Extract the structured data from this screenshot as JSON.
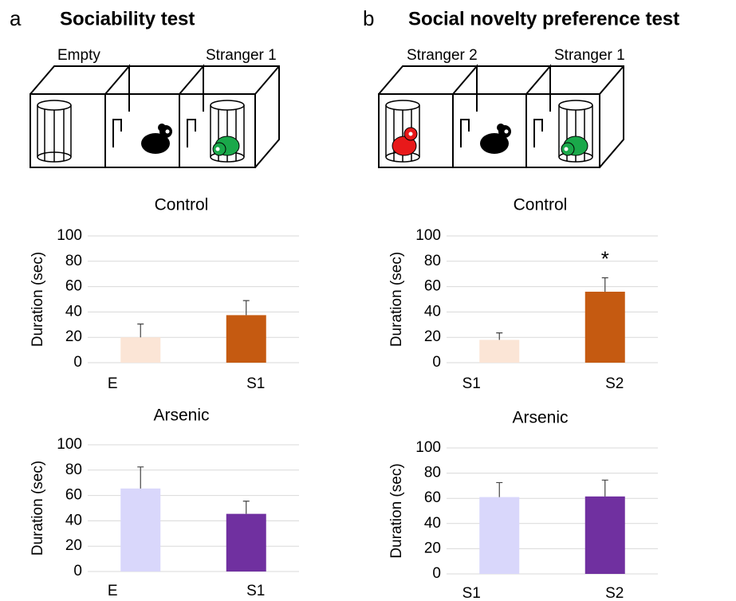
{
  "panels": [
    {
      "letter": "a",
      "title": "Sociability test",
      "diagram": {
        "labels": [
          "Empty",
          "Stranger 1"
        ]
      }
    },
    {
      "letter": "b",
      "title": "Social novelty preference test",
      "diagram": {
        "labels": [
          "Stranger 2",
          "Stranger 1"
        ]
      }
    }
  ],
  "chart_data": [
    {
      "type": "bar",
      "title": "Control",
      "ylabel": "Duration (sec)",
      "categories": [
        "E",
        "S1"
      ],
      "values": [
        20,
        37.5
      ],
      "errors": [
        10.5,
        11.5
      ],
      "colors": [
        "#fbe5d6",
        "#c55a11"
      ],
      "ylim": [
        0,
        100
      ],
      "yticks": [
        0,
        20,
        40,
        60,
        80,
        100
      ],
      "grid": true
    },
    {
      "type": "bar",
      "title": "Control",
      "ylabel": "Duration (sec)",
      "categories": [
        "S1",
        "S2"
      ],
      "values": [
        18,
        56
      ],
      "errors": [
        5.5,
        11
      ],
      "colors": [
        "#fbe5d6",
        "#c55a11"
      ],
      "ylim": [
        0,
        100
      ],
      "yticks": [
        0,
        20,
        40,
        60,
        80,
        100
      ],
      "grid": true,
      "annotations": [
        {
          "text": "*",
          "category": "S2"
        }
      ]
    },
    {
      "type": "bar",
      "title": "Arsenic",
      "ylabel": "Duration (sec)",
      "categories": [
        "E",
        "S1"
      ],
      "values": [
        65.5,
        45.5
      ],
      "errors": [
        17,
        10
      ],
      "colors": [
        "#d9d7fb",
        "#7030a0"
      ],
      "ylim": [
        0,
        100
      ],
      "yticks": [
        0,
        20,
        40,
        60,
        80,
        100
      ],
      "grid": true
    },
    {
      "type": "bar",
      "title": "Arsenic",
      "ylabel": "Duration (sec)",
      "categories": [
        "S1",
        "S2"
      ],
      "values": [
        61,
        61.5
      ],
      "errors": [
        11.5,
        13
      ],
      "colors": [
        "#d9d7fb",
        "#7030a0"
      ],
      "ylim": [
        0,
        100
      ],
      "yticks": [
        0,
        20,
        40,
        60,
        80,
        100
      ],
      "grid": true
    }
  ]
}
